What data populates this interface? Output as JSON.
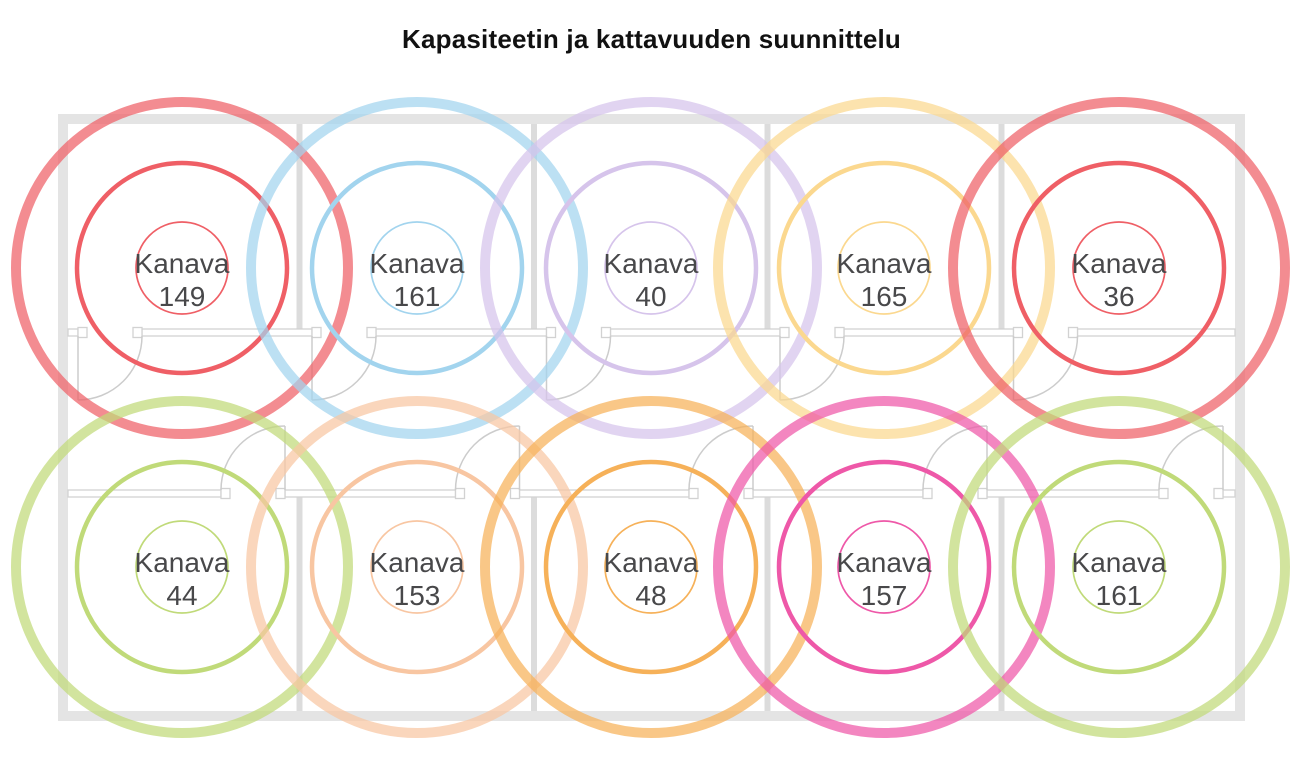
{
  "title": "Kapasiteetin ja kattavuuden suunnittelu",
  "label_color": "#48484a",
  "floorplan": {
    "outer_wall_color": "#e4e4e4",
    "partition_color": "#dcdcdc",
    "wall_outline_color": "#d2d2d2",
    "door_color": "#cccccc",
    "rooms_per_row": 5,
    "room_rows": 2
  },
  "access_points": [
    {
      "name": "Kanava",
      "channel": "149",
      "color": "#ef5f66",
      "row": 0,
      "col": 0
    },
    {
      "name": "Kanava",
      "channel": "161",
      "color": "#a2d4ee",
      "row": 0,
      "col": 1
    },
    {
      "name": "Kanava",
      "channel": "40",
      "color": "#d6c4eb",
      "row": 0,
      "col": 2
    },
    {
      "name": "Kanava",
      "channel": "165",
      "color": "#fbd88f",
      "row": 0,
      "col": 3
    },
    {
      "name": "Kanava",
      "channel": "36",
      "color": "#ef5f66",
      "row": 0,
      "col": 4
    },
    {
      "name": "Kanava",
      "channel": "44",
      "color": "#c0da79",
      "row": 1,
      "col": 0
    },
    {
      "name": "Kanava",
      "channel": "153",
      "color": "#f8c6a2",
      "row": 1,
      "col": 1
    },
    {
      "name": "Kanava",
      "channel": "48",
      "color": "#f6b159",
      "row": 1,
      "col": 2
    },
    {
      "name": "Kanava",
      "channel": "157",
      "color": "#ee58a8",
      "row": 1,
      "col": 3
    },
    {
      "name": "Kanava",
      "channel": "161",
      "color": "#c0da79",
      "row": 1,
      "col": 4
    }
  ]
}
